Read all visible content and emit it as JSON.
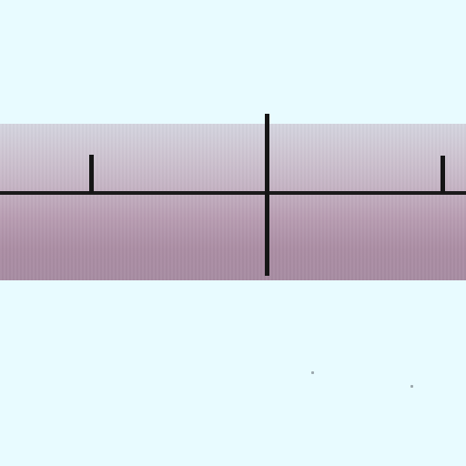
{
  "scene": {
    "background_color": "#e8fbff",
    "band_top_color": "#d4d5df",
    "band_bottom_color": "#a78ca2",
    "line_color": "#151515"
  }
}
